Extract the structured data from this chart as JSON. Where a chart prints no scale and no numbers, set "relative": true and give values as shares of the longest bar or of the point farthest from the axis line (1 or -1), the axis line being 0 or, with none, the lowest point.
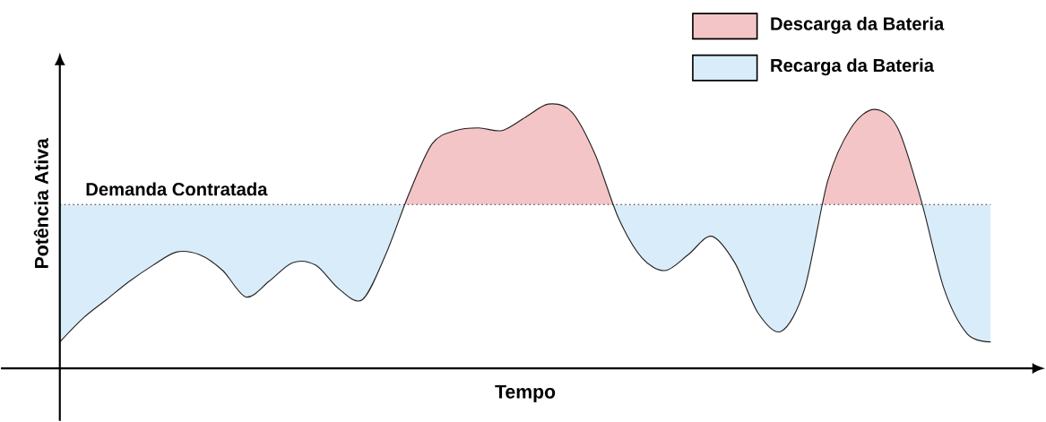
{
  "chart_data": {
    "type": "line",
    "relative": true,
    "xlabel": "Tempo",
    "ylabel": "Potência Ativa",
    "categories": [
      null,
      null,
      null,
      null,
      null,
      null,
      null,
      null,
      null,
      null,
      null,
      null,
      null,
      null,
      null,
      null,
      null,
      null,
      null,
      null,
      null,
      null,
      null,
      null,
      null,
      null,
      null,
      null,
      null,
      null,
      null,
      null,
      null,
      null,
      null,
      null,
      null,
      null,
      null,
      null,
      null
    ],
    "series": [
      {
        "color": "#231f20",
        "values": [
          0.1,
          0.19,
          0.26,
          0.33,
          0.39,
          0.44,
          0.43,
          0.37,
          0.27,
          0.33,
          0.4,
          0.39,
          0.3,
          0.26,
          0.43,
          0.66,
          0.85,
          0.9,
          0.91,
          0.9,
          0.95,
          1,
          0.97,
          0.81,
          0.57,
          0.42,
          0.37,
          0.43,
          0.5,
          0.4,
          0.21,
          0.14,
          0.3,
          0.71,
          0.91,
          0.98,
          0.91,
          0.64,
          0.3,
          0.13,
          0.1
        ]
      }
    ],
    "ref_lines": [
      {
        "axis": "y",
        "value": 0.62,
        "label": "Demanda Contratada",
        "color": "#231f20",
        "line_style": "dotted"
      }
    ],
    "bands": [
      {
        "axis": "y",
        "from": 0.62,
        "to": 1,
        "label": "Descarga da Bateria",
        "color": "#f4c5c7"
      },
      {
        "axis": "y",
        "from": 0,
        "to": 0.62,
        "label": "Recarga da Bateria",
        "color": "#d9ecf9"
      }
    ],
    "legend": "top right",
    "marker": "none",
    "line_style": "solid"
  }
}
